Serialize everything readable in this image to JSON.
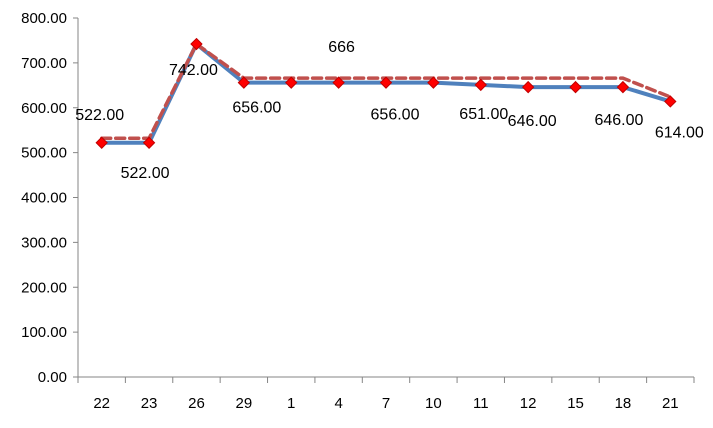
{
  "chart_data": {
    "type": "line",
    "categories": [
      "22",
      "23",
      "26",
      "29",
      "1",
      "4",
      "7",
      "10",
      "11",
      "12",
      "15",
      "18",
      "21"
    ],
    "ylim": [
      0,
      800
    ],
    "yticks": [
      "0.00",
      "100.00",
      "200.00",
      "300.00",
      "400.00",
      "500.00",
      "600.00",
      "700.00",
      "800.00"
    ],
    "grid": false,
    "legend": "none",
    "series": [
      {
        "values": [
          522,
          522,
          742,
          656,
          656,
          656,
          656,
          656,
          651,
          646,
          646,
          646,
          614
        ],
        "color": "#4F81BD",
        "style": "solid",
        "marker": "diamond",
        "marker_color": "#FF0000"
      },
      {
        "values": [
          532,
          532,
          742,
          666,
          666,
          666,
          666,
          666,
          666,
          666,
          666,
          666,
          624
        ],
        "color": "#C0504D",
        "style": "dashed"
      }
    ],
    "data_labels": [
      {
        "text": "522.00",
        "index": 0,
        "pos": "above"
      },
      {
        "text": "522.00",
        "index": 1,
        "pos": "below"
      },
      {
        "text": "742.00",
        "index": 2,
        "pos": "below"
      },
      {
        "text": "656.00",
        "index": 3,
        "pos": "below"
      },
      {
        "text": "666",
        "index": 5,
        "pos": "above"
      },
      {
        "text": "656.00",
        "index": 6,
        "pos": "below"
      },
      {
        "text": "651.00",
        "index": 8,
        "pos": "below"
      },
      {
        "text": "646.00",
        "index": 9,
        "pos": "below"
      },
      {
        "text": "646.00",
        "index": 11,
        "pos": "below"
      },
      {
        "text": "614.00",
        "index": 12,
        "pos": "below"
      }
    ]
  }
}
